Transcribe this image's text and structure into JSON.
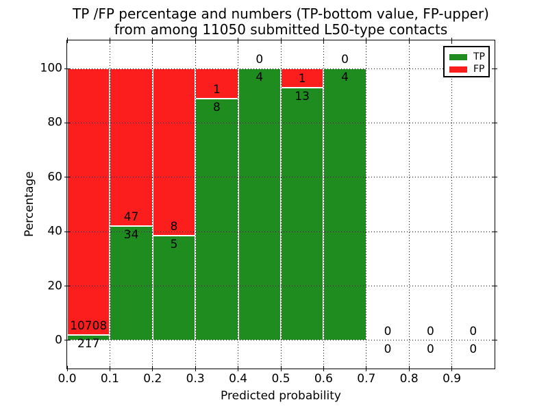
{
  "chart_data": {
    "type": "bar",
    "stacked": true,
    "title_line1": "TP /FP percentage and numbers (TP-bottom value, FP-upper)",
    "title_line2": "from among 11050 submitted L50-type contacts",
    "xlabel": "Predicted probability",
    "ylabel": "Percentage",
    "total_contacts": 11050,
    "bin_edges": [
      0.0,
      0.1,
      0.2,
      0.3,
      0.4,
      0.5,
      0.6,
      0.7,
      0.8,
      0.9,
      1.0
    ],
    "x_tick_values": [
      0.0,
      0.1,
      0.2,
      0.3,
      0.4,
      0.5,
      0.6,
      0.7,
      0.8,
      0.9
    ],
    "x_tick_labels": [
      "0.0",
      "0.1",
      "0.2",
      "0.3",
      "0.4",
      "0.5",
      "0.6",
      "0.7",
      "0.8",
      "0.9"
    ],
    "y_tick_values": [
      0,
      20,
      40,
      60,
      80,
      100
    ],
    "y_tick_labels": [
      "0",
      "20",
      "40",
      "60",
      "80",
      "100"
    ],
    "xlim": [
      0.0,
      1.0
    ],
    "ylim": [
      -10.33,
      110.33
    ],
    "grid": {
      "style": "dotted",
      "color": "#000000"
    },
    "series": [
      {
        "name": "TP",
        "color": "#1e8c1e",
        "counts": [
          217,
          34,
          5,
          8,
          4,
          13,
          4,
          0,
          0,
          0
        ]
      },
      {
        "name": "FP",
        "color": "#fc1d1d",
        "counts": [
          10708,
          47,
          8,
          1,
          0,
          1,
          0,
          0,
          0,
          0
        ]
      }
    ],
    "tp_percent": [
      1.99,
      41.98,
      38.46,
      88.89,
      100.0,
      92.86,
      100.0,
      null,
      null,
      null
    ],
    "legend": {
      "position": "upper right",
      "entries": [
        {
          "label": "TP",
          "color": "#1e8c1e"
        },
        {
          "label": "FP",
          "color": "#fc1d1d"
        }
      ]
    }
  }
}
